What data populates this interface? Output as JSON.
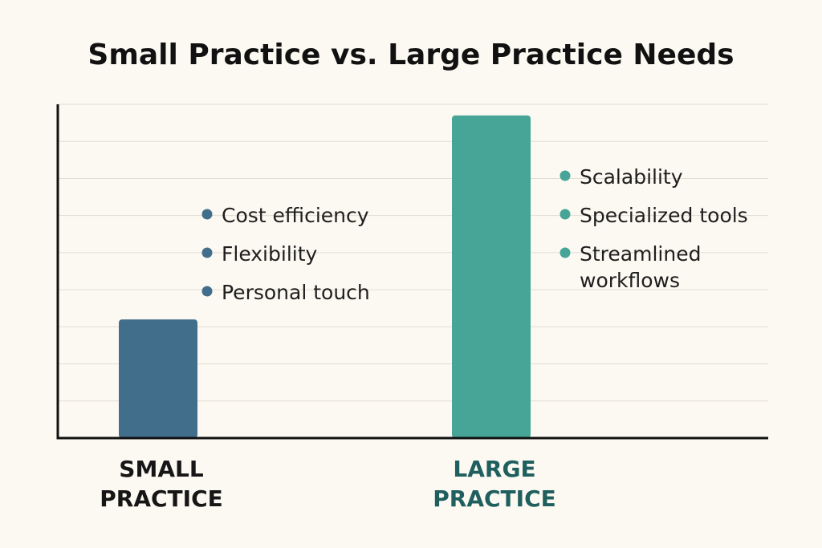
{
  "chart_data": {
    "type": "bar",
    "title": "Small Practice vs. Large Practice Needs",
    "xlabel": "",
    "ylabel": "",
    "ylim": [
      0,
      9
    ],
    "grid": true,
    "categories": [
      [
        "SMALL",
        "PRACTICE"
      ],
      [
        "LARGE",
        "PRACTICE"
      ]
    ],
    "values": [
      3.2,
      8.7
    ],
    "annotations": [
      [
        "Cost efficiency",
        "Flexibility",
        "Personal touch"
      ],
      [
        "Scalability",
        "Specialized tools",
        [
          "Streamlined",
          "workflows"
        ]
      ]
    ]
  },
  "colors": {
    "background": "#fcf9f2",
    "small_bar": "#416f8b",
    "large_bar": "#46a597",
    "small_label": "#161616",
    "large_label": "#1f5f5e",
    "axis": "#111111",
    "grid": "#e1ddd3",
    "text": "#1e1e1e"
  }
}
